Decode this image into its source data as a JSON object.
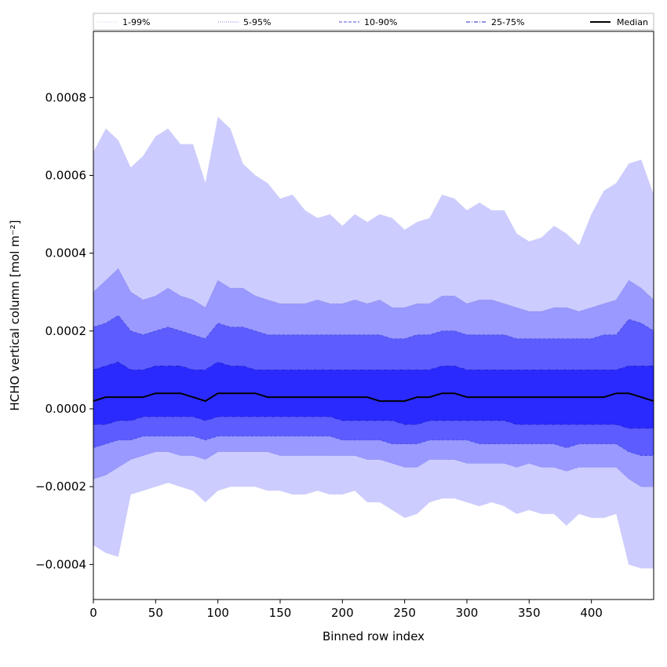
{
  "chart_data": {
    "type": "area",
    "xlabel": "Binned row index",
    "ylabel": "HCHO vertical column [mol m⁻²]",
    "xlim": [
      0,
      450
    ],
    "ylim": [
      -0.00049,
      0.00097
    ],
    "xticks": [
      0,
      50,
      100,
      150,
      200,
      250,
      300,
      350,
      400
    ],
    "xtick_labels": [
      "0",
      "50",
      "100",
      "150",
      "200",
      "250",
      "300",
      "350",
      "400"
    ],
    "yticks": [
      -0.0004,
      -0.0002,
      0.0,
      0.0002,
      0.0004,
      0.0006,
      0.0008
    ],
    "ytick_labels": [
      "−0.0004",
      "−0.0002",
      "0.0000",
      "0.0002",
      "0.0004",
      "0.0006",
      "0.0008"
    ],
    "grid": false,
    "legend_position": "top (above plot, single row)",
    "colors": {
      "band_1_99": "#ccccff",
      "band_5_95": "#9999ff",
      "band_10_90": "#5c5cff",
      "band_25_75": "#2a2aff",
      "line_1_99": "#c8c8e8",
      "line_5_95": "#8080e0",
      "line_10_90": "#5050e0",
      "line_25_75": "#2020c8",
      "median": "#000000"
    },
    "x": [
      0,
      10,
      20,
      30,
      40,
      50,
      60,
      70,
      80,
      90,
      100,
      110,
      120,
      130,
      140,
      150,
      160,
      170,
      180,
      190,
      200,
      210,
      220,
      230,
      240,
      250,
      260,
      270,
      280,
      290,
      300,
      310,
      320,
      330,
      340,
      350,
      360,
      370,
      380,
      390,
      400,
      410,
      420,
      430,
      440,
      450
    ],
    "series": [
      {
        "name": "1-99%",
        "style": "dotted",
        "lower": [
          -0.00035,
          -0.00037,
          -0.00038,
          -0.00022,
          -0.00021,
          -0.0002,
          -0.00019,
          -0.0002,
          -0.00021,
          -0.00024,
          -0.00021,
          -0.0002,
          -0.0002,
          -0.0002,
          -0.00021,
          -0.00021,
          -0.00022,
          -0.00022,
          -0.00021,
          -0.00022,
          -0.00022,
          -0.00021,
          -0.00024,
          -0.00024,
          -0.00026,
          -0.00028,
          -0.00027,
          -0.00024,
          -0.00023,
          -0.00023,
          -0.00024,
          -0.00025,
          -0.00024,
          -0.00025,
          -0.00027,
          -0.00026,
          -0.00027,
          -0.00027,
          -0.0003,
          -0.00027,
          -0.00028,
          -0.00028,
          -0.00027,
          -0.0004,
          -0.00041,
          -0.00041
        ],
        "upper": [
          0.00066,
          0.00072,
          0.00069,
          0.00062,
          0.00065,
          0.0007,
          0.00072,
          0.00068,
          0.00068,
          0.00058,
          0.00075,
          0.00072,
          0.00063,
          0.0006,
          0.00058,
          0.00054,
          0.00055,
          0.00051,
          0.00049,
          0.0005,
          0.00047,
          0.0005,
          0.00048,
          0.0005,
          0.00049,
          0.00046,
          0.00048,
          0.00049,
          0.00055,
          0.00054,
          0.00051,
          0.00053,
          0.00051,
          0.00051,
          0.00045,
          0.00043,
          0.00044,
          0.00047,
          0.00045,
          0.00042,
          0.0005,
          0.00056,
          0.00058,
          0.00063,
          0.00064,
          0.00055
        ]
      },
      {
        "name": "5-95%",
        "style": "dotted",
        "lower": [
          -0.00018,
          -0.00017,
          -0.00015,
          -0.00013,
          -0.00012,
          -0.00011,
          -0.00011,
          -0.00012,
          -0.00012,
          -0.00013,
          -0.00011,
          -0.00011,
          -0.00011,
          -0.00011,
          -0.00011,
          -0.00012,
          -0.00012,
          -0.00012,
          -0.00012,
          -0.00012,
          -0.00012,
          -0.00012,
          -0.00013,
          -0.00013,
          -0.00014,
          -0.00015,
          -0.00015,
          -0.00013,
          -0.00013,
          -0.00013,
          -0.00014,
          -0.00014,
          -0.00014,
          -0.00014,
          -0.00015,
          -0.00014,
          -0.00015,
          -0.00015,
          -0.00016,
          -0.00015,
          -0.00015,
          -0.00015,
          -0.00015,
          -0.00018,
          -0.0002,
          -0.0002
        ],
        "upper": [
          0.0003,
          0.00033,
          0.00036,
          0.0003,
          0.00028,
          0.00029,
          0.00031,
          0.00029,
          0.00028,
          0.00026,
          0.00033,
          0.00031,
          0.00031,
          0.00029,
          0.00028,
          0.00027,
          0.00027,
          0.00027,
          0.00028,
          0.00027,
          0.00027,
          0.00028,
          0.00027,
          0.00028,
          0.00026,
          0.00026,
          0.00027,
          0.00027,
          0.00029,
          0.00029,
          0.00027,
          0.00028,
          0.00028,
          0.00027,
          0.00026,
          0.00025,
          0.00025,
          0.00026,
          0.00026,
          0.00025,
          0.00026,
          0.00027,
          0.00028,
          0.00033,
          0.00031,
          0.00028
        ]
      },
      {
        "name": "10-90%",
        "style": "dashed",
        "lower": [
          -0.0001,
          -9e-05,
          -8e-05,
          -8e-05,
          -7e-05,
          -7e-05,
          -7e-05,
          -7e-05,
          -7e-05,
          -8e-05,
          -7e-05,
          -7e-05,
          -7e-05,
          -7e-05,
          -7e-05,
          -7e-05,
          -7e-05,
          -7e-05,
          -7e-05,
          -7e-05,
          -8e-05,
          -8e-05,
          -8e-05,
          -8e-05,
          -9e-05,
          -9e-05,
          -9e-05,
          -8e-05,
          -8e-05,
          -8e-05,
          -8e-05,
          -9e-05,
          -9e-05,
          -9e-05,
          -9e-05,
          -9e-05,
          -9e-05,
          -9e-05,
          -0.0001,
          -9e-05,
          -9e-05,
          -9e-05,
          -9e-05,
          -0.00011,
          -0.00012,
          -0.00012
        ],
        "upper": [
          0.00021,
          0.00022,
          0.00024,
          0.0002,
          0.00019,
          0.0002,
          0.00021,
          0.0002,
          0.00019,
          0.00018,
          0.00022,
          0.00021,
          0.00021,
          0.0002,
          0.00019,
          0.00019,
          0.00019,
          0.00019,
          0.00019,
          0.00019,
          0.00019,
          0.00019,
          0.00019,
          0.00019,
          0.00018,
          0.00018,
          0.00019,
          0.00019,
          0.0002,
          0.0002,
          0.00019,
          0.00019,
          0.00019,
          0.00019,
          0.00018,
          0.00018,
          0.00018,
          0.00018,
          0.00018,
          0.00018,
          0.00018,
          0.00019,
          0.00019,
          0.00023,
          0.00022,
          0.0002
        ]
      },
      {
        "name": "25-75%",
        "style": "dash-dot",
        "lower": [
          -4e-05,
          -4e-05,
          -3e-05,
          -3e-05,
          -2e-05,
          -2e-05,
          -2e-05,
          -2e-05,
          -2e-05,
          -3e-05,
          -2e-05,
          -2e-05,
          -2e-05,
          -2e-05,
          -2e-05,
          -2e-05,
          -2e-05,
          -2e-05,
          -2e-05,
          -2e-05,
          -3e-05,
          -3e-05,
          -3e-05,
          -3e-05,
          -3e-05,
          -4e-05,
          -4e-05,
          -3e-05,
          -3e-05,
          -3e-05,
          -3e-05,
          -3e-05,
          -3e-05,
          -3e-05,
          -4e-05,
          -4e-05,
          -4e-05,
          -4e-05,
          -4e-05,
          -4e-05,
          -4e-05,
          -4e-05,
          -4e-05,
          -5e-05,
          -5e-05,
          -5e-05
        ],
        "upper": [
          0.0001,
          0.00011,
          0.00012,
          0.0001,
          0.0001,
          0.00011,
          0.00011,
          0.00011,
          0.0001,
          0.0001,
          0.00012,
          0.00011,
          0.00011,
          0.0001,
          0.0001,
          0.0001,
          0.0001,
          0.0001,
          0.0001,
          0.0001,
          0.0001,
          0.0001,
          0.0001,
          0.0001,
          0.0001,
          0.0001,
          0.0001,
          0.0001,
          0.00011,
          0.00011,
          0.0001,
          0.0001,
          0.0001,
          0.0001,
          0.0001,
          0.0001,
          0.0001,
          0.0001,
          0.0001,
          0.0001,
          0.0001,
          0.0001,
          0.0001,
          0.00011,
          0.00011,
          0.00011
        ]
      },
      {
        "name": "Median",
        "style": "solid",
        "values": [
          2e-05,
          3e-05,
          3e-05,
          3e-05,
          3e-05,
          4e-05,
          4e-05,
          4e-05,
          3e-05,
          2e-05,
          4e-05,
          4e-05,
          4e-05,
          4e-05,
          3e-05,
          3e-05,
          3e-05,
          3e-05,
          3e-05,
          3e-05,
          3e-05,
          3e-05,
          3e-05,
          2e-05,
          2e-05,
          2e-05,
          3e-05,
          3e-05,
          4e-05,
          4e-05,
          3e-05,
          3e-05,
          3e-05,
          3e-05,
          3e-05,
          3e-05,
          3e-05,
          3e-05,
          3e-05,
          3e-05,
          3e-05,
          3e-05,
          4e-05,
          4e-05,
          3e-05,
          2e-05
        ]
      }
    ]
  }
}
